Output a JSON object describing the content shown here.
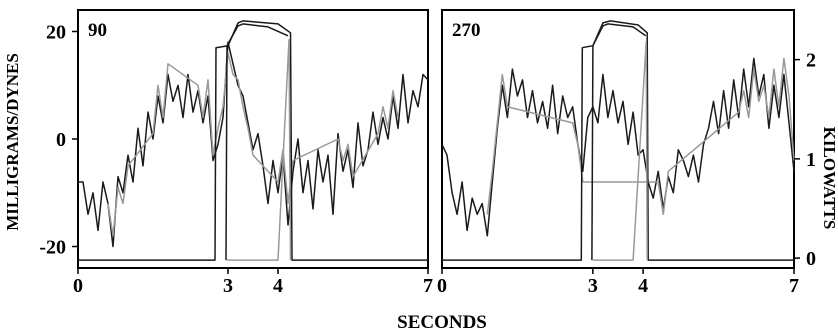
{
  "chart_data": [
    {
      "type": "line",
      "panel_label": "90",
      "x_range": [
        0,
        7
      ],
      "x_ticks": [
        0,
        3,
        4,
        7
      ],
      "left_axis": {
        "label": "MILLIGRAMS/DYNES",
        "range": [
          -24,
          24
        ],
        "ticks": [
          20,
          0,
          -20
        ]
      },
      "right_axis": {
        "label": "KILOWATTS",
        "range": [
          -0.1,
          2.5
        ],
        "ticks": [
          2,
          1,
          0
        ],
        "shown": false
      },
      "series": [
        {
          "axis": "left",
          "color": "#1a1a1a",
          "x": [
            0,
            0.1,
            0.2,
            0.3,
            0.4,
            0.5,
            0.6,
            0.7,
            0.8,
            0.9,
            1.0,
            1.1,
            1.2,
            1.3,
            1.4,
            1.5,
            1.6,
            1.7,
            1.8,
            1.9,
            2.0,
            2.1,
            2.2,
            2.3,
            2.4,
            2.5,
            2.6,
            2.7,
            2.8,
            2.9,
            3.0,
            3.1,
            3.2,
            3.3,
            3.4,
            3.5,
            3.6,
            3.7,
            3.8,
            3.9,
            4.0,
            4.1,
            4.2,
            4.3,
            4.4,
            4.5,
            4.6,
            4.7,
            4.8,
            4.9,
            5.0,
            5.1,
            5.2,
            5.3,
            5.4,
            5.5,
            5.6,
            5.7,
            5.8,
            5.9,
            6.0,
            6.1,
            6.2,
            6.3,
            6.4,
            6.5,
            6.6,
            6.7,
            6.8,
            6.9,
            7.0
          ],
          "y": [
            -8,
            -8,
            -14,
            -10,
            -17,
            -8,
            -12,
            -20,
            -7,
            -10,
            -3,
            -8,
            2,
            -5,
            5,
            0,
            8,
            3,
            12,
            7,
            10,
            4,
            12,
            5,
            9,
            3,
            8,
            -4,
            -1,
            4,
            18,
            14,
            10,
            8,
            3,
            -2,
            1,
            -5,
            -12,
            -4,
            -10,
            -3,
            -16,
            -6,
            0,
            -10,
            -4,
            -13,
            -2,
            -8,
            -3,
            -14,
            1,
            -6,
            -2,
            -9,
            3,
            -5,
            -2,
            5,
            -1,
            4,
            0,
            8,
            2,
            12,
            3,
            9,
            6,
            12,
            11
          ]
        },
        {
          "axis": "left",
          "color": "#999999",
          "x": [
            0.6,
            0.7,
            0.8,
            0.9,
            1.0,
            1.5,
            1.6,
            1.7,
            1.8,
            2.4,
            2.5,
            2.6,
            2.7,
            2.8,
            2.9,
            3.0,
            3.1,
            3.2,
            3.3,
            3.4,
            3.5,
            4.0,
            4.1,
            4.2,
            4.3,
            5.2,
            5.3,
            5.4,
            5.5,
            6.0,
            6.1,
            6.2,
            6.3,
            6.4
          ],
          "y": [
            -12,
            -18,
            -9,
            -12,
            -5,
            1,
            10,
            4,
            14,
            10,
            4,
            11,
            -3,
            2,
            6,
            16,
            12,
            11,
            6,
            2,
            -3,
            -8,
            -2,
            -12,
            -4,
            0,
            -4,
            -1,
            -7,
            1,
            6,
            2,
            9,
            4
          ]
        },
        {
          "axis": "right",
          "color": "#1a1a1a",
          "x": [
            0,
            2.74,
            2.76,
            3.0,
            3.2,
            3.3,
            4.0,
            4.25,
            4.28,
            7.0
          ],
          "y": [
            -0.02,
            -0.02,
            2.12,
            2.14,
            2.37,
            2.39,
            2.36,
            2.27,
            -0.02,
            -0.02
          ]
        },
        {
          "axis": "right",
          "color": "#1a1a1a",
          "x": [
            2.96,
            2.98,
            3.2,
            3.3,
            3.8,
            4.2
          ],
          "y": [
            -0.02,
            2.14,
            2.34,
            2.36,
            2.33,
            2.24
          ]
        },
        {
          "axis": "right",
          "color": "#999999",
          "x": [
            2.98,
            3.0,
            4.0,
            4.22,
            4.25
          ],
          "y": [
            -0.02,
            -0.02,
            -0.02,
            2.2,
            -0.02
          ]
        }
      ]
    },
    {
      "type": "line",
      "panel_label": "270",
      "x_range": [
        0,
        7
      ],
      "x_ticks": [
        0,
        3,
        4,
        7
      ],
      "left_axis": {
        "label": "MILLIGRAMS/DYNES",
        "range": [
          -24,
          24
        ],
        "ticks": [
          20,
          0,
          -20
        ],
        "shown": false
      },
      "right_axis": {
        "label": "KILOWATTS",
        "range": [
          -0.1,
          2.5
        ],
        "ticks": [
          2,
          1,
          0
        ]
      },
      "series": [
        {
          "axis": "left",
          "color": "#1a1a1a",
          "x": [
            0,
            0.1,
            0.2,
            0.3,
            0.4,
            0.5,
            0.6,
            0.7,
            0.8,
            0.9,
            1.0,
            1.1,
            1.2,
            1.3,
            1.4,
            1.5,
            1.6,
            1.7,
            1.8,
            1.9,
            2.0,
            2.1,
            2.2,
            2.3,
            2.4,
            2.5,
            2.6,
            2.7,
            2.8,
            2.9,
            3.0,
            3.1,
            3.2,
            3.3,
            3.4,
            3.5,
            3.6,
            3.7,
            3.8,
            3.9,
            4.0,
            4.1,
            4.2,
            4.3,
            4.4,
            4.5,
            4.6,
            4.7,
            4.8,
            4.9,
            5.0,
            5.1,
            5.2,
            5.3,
            5.4,
            5.5,
            5.6,
            5.7,
            5.8,
            5.9,
            6.0,
            6.1,
            6.2,
            6.3,
            6.4,
            6.5,
            6.6,
            6.7,
            6.8,
            6.9,
            7.0
          ],
          "y": [
            -1,
            -3,
            -10,
            -14,
            -8,
            -17,
            -11,
            -14,
            -12,
            -18,
            -8,
            2,
            10,
            4,
            13,
            8,
            11,
            4,
            9,
            3,
            7,
            2,
            10,
            1,
            8,
            4,
            6,
            -1,
            -6,
            4,
            6,
            3,
            12,
            4,
            9,
            3,
            7,
            -1,
            5,
            -3,
            -2,
            -8,
            -11,
            -6,
            -13,
            -7,
            -10,
            -2,
            -4,
            -7,
            -3,
            -8,
            -1,
            2,
            7,
            1,
            9,
            2,
            11,
            4,
            13,
            6,
            15,
            8,
            12,
            2,
            10,
            4,
            12,
            3,
            -6
          ]
        },
        {
          "axis": "left",
          "color": "#999999",
          "x": [
            0.9,
            1.0,
            1.1,
            1.2,
            1.3,
            2.6,
            2.7,
            2.8,
            4.3,
            4.4,
            4.5,
            5.9,
            6.0,
            6.1,
            6.2,
            6.3,
            6.4,
            6.5,
            6.6,
            6.7,
            6.8,
            6.9,
            7.0
          ],
          "y": [
            -14,
            -6,
            3,
            12,
            6,
            3,
            -1,
            -8,
            -8,
            -14,
            -6,
            5,
            9,
            4,
            13,
            7,
            10,
            4,
            13,
            6,
            15,
            8,
            -4
          ]
        },
        {
          "axis": "right",
          "color": "#1a1a1a",
          "x": [
            0,
            2.77,
            2.79,
            3.0,
            3.2,
            3.35,
            3.9,
            4.08,
            4.1,
            7.0
          ],
          "y": [
            -0.02,
            -0.02,
            2.12,
            2.14,
            2.37,
            2.39,
            2.35,
            2.27,
            -0.02,
            -0.02
          ]
        },
        {
          "axis": "right",
          "color": "#1a1a1a",
          "x": [
            2.98,
            3.0,
            3.2,
            3.3,
            3.8,
            4.05
          ],
          "y": [
            -0.02,
            2.14,
            2.34,
            2.36,
            2.33,
            2.24
          ]
        },
        {
          "axis": "right",
          "color": "#999999",
          "x": [
            3.0,
            3.02,
            3.8,
            4.06,
            4.08
          ],
          "y": [
            -0.02,
            -0.02,
            -0.02,
            2.18,
            -0.02
          ]
        }
      ]
    }
  ],
  "texts": {
    "xlabel": "SECONDS",
    "ylabel_left": "MILLIGRAMS/DYNES",
    "ylabel_right": "KILOWATTS"
  }
}
